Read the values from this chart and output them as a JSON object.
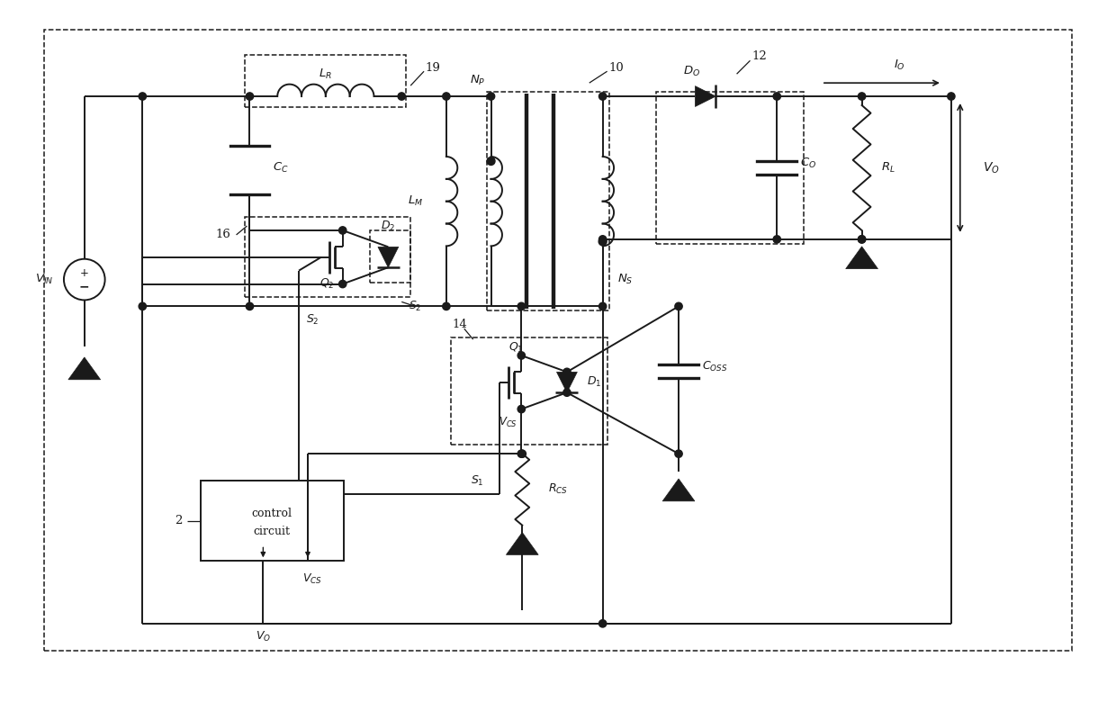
{
  "bg_color": "#ffffff",
  "lc": "#1a1a1a",
  "lw": 1.4,
  "dlw": 1.1,
  "figsize": [
    12.4,
    7.8
  ],
  "dpi": 100,
  "xlim": [
    0,
    124
  ],
  "ylim": [
    0,
    78
  ]
}
